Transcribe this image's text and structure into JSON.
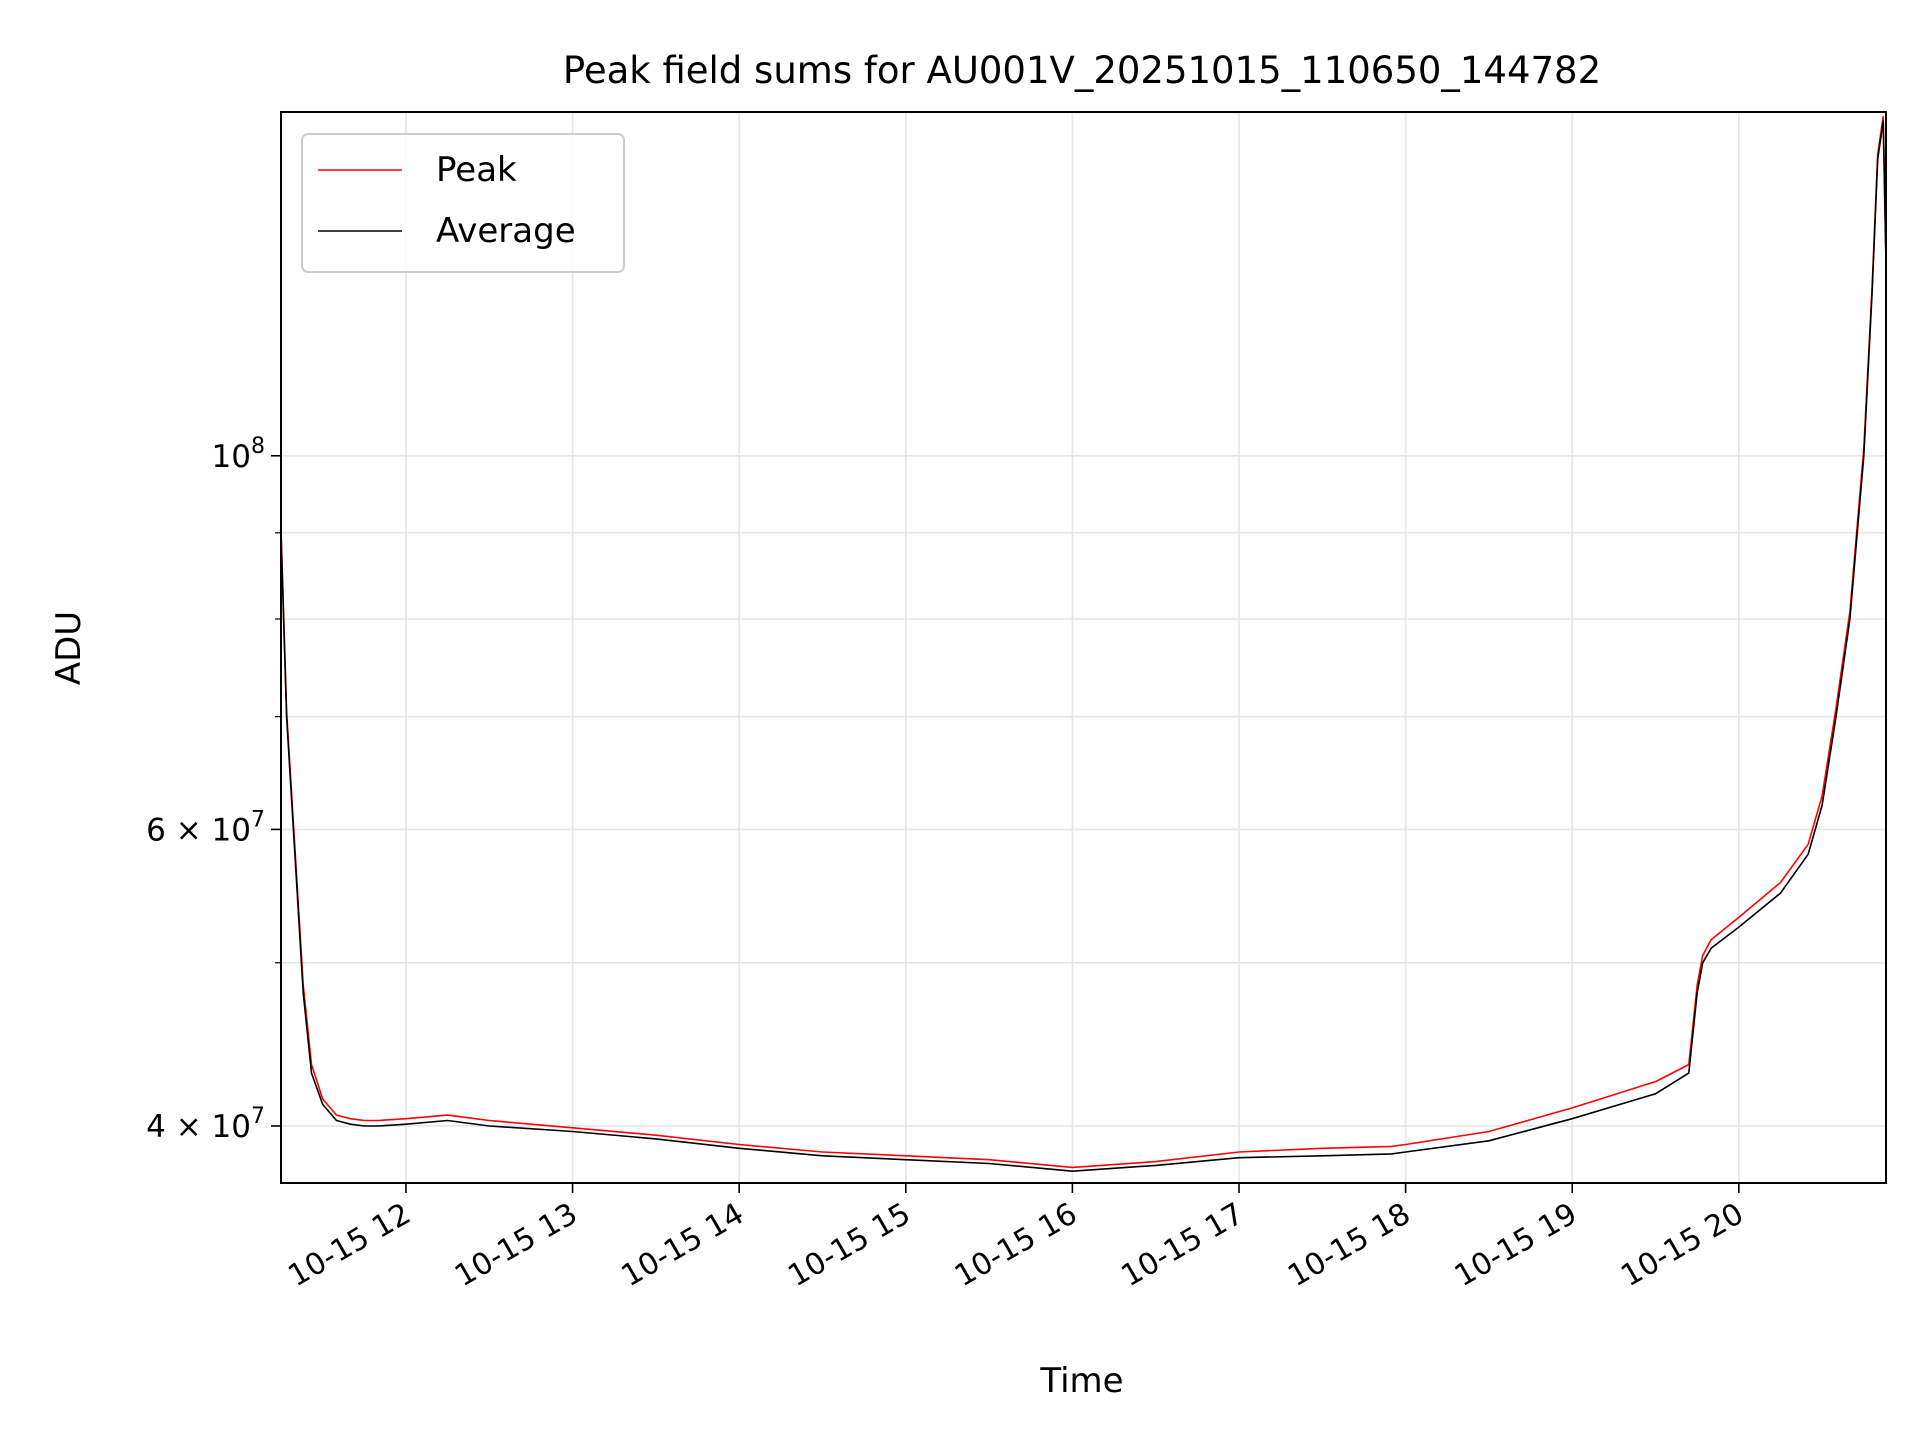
{
  "chart_data": {
    "type": "line",
    "title": "Peak field sums for AU001V_20251015_110650_144782",
    "xlabel": "Time",
    "ylabel": "ADU",
    "yscale": "log",
    "grid": true,
    "legend_position": "top-left",
    "xlim": [
      "2025-10-15 11:15",
      "2025-10-15 20:53"
    ],
    "ylim": [
      37000000,
      160000000
    ],
    "x_ticks": [
      {
        "label": "10-15 12",
        "value": "2025-10-15 12:00"
      },
      {
        "label": "10-15 13",
        "value": "2025-10-15 13:00"
      },
      {
        "label": "10-15 14",
        "value": "2025-10-15 14:00"
      },
      {
        "label": "10-15 15",
        "value": "2025-10-15 15:00"
      },
      {
        "label": "10-15 16",
        "value": "2025-10-15 16:00"
      },
      {
        "label": "10-15 17",
        "value": "2025-10-15 17:00"
      },
      {
        "label": "10-15 18",
        "value": "2025-10-15 18:00"
      },
      {
        "label": "10-15 19",
        "value": "2025-10-15 19:00"
      },
      {
        "label": "10-15 20",
        "value": "2025-10-15 20:00"
      }
    ],
    "y_ticks_major": [
      {
        "base": "4",
        "exp": "7",
        "value": 40000000
      },
      {
        "base": "6",
        "exp": "7",
        "value": 60000000
      },
      {
        "base": "",
        "exp": "8",
        "value": 100000000
      }
    ],
    "y_ticks_minor": [
      50000000,
      70000000,
      80000000,
      90000000
    ],
    "series": [
      {
        "name": "Average",
        "color": "#000000",
        "x": [
          "2025-10-15 11:15",
          "2025-10-15 11:17",
          "2025-10-15 11:20",
          "2025-10-15 11:23",
          "2025-10-15 11:26",
          "2025-10-15 11:30",
          "2025-10-15 11:35",
          "2025-10-15 11:40",
          "2025-10-15 11:45",
          "2025-10-15 11:50",
          "2025-10-15 12:00",
          "2025-10-15 12:15",
          "2025-10-15 12:30",
          "2025-10-15 13:00",
          "2025-10-15 13:30",
          "2025-10-15 14:00",
          "2025-10-15 14:30",
          "2025-10-15 15:00",
          "2025-10-15 15:30",
          "2025-10-15 16:00",
          "2025-10-15 16:30",
          "2025-10-15 17:00",
          "2025-10-15 17:30",
          "2025-10-15 17:55",
          "2025-10-15 18:00",
          "2025-10-15 18:30",
          "2025-10-15 19:00",
          "2025-10-15 19:30",
          "2025-10-15 19:42",
          "2025-10-15 19:45",
          "2025-10-15 19:47",
          "2025-10-15 19:50",
          "2025-10-15 20:00",
          "2025-10-15 20:15",
          "2025-10-15 20:25",
          "2025-10-15 20:30",
          "2025-10-15 20:35",
          "2025-10-15 20:40",
          "2025-10-15 20:45",
          "2025-10-15 20:48",
          "2025-10-15 20:50",
          "2025-10-15 20:52",
          "2025-10-15 20:53"
        ],
        "y": [
          90000000,
          70000000,
          58000000,
          48000000,
          43000000,
          41200000,
          40300000,
          40100000,
          40000000,
          40000000,
          40100000,
          40300000,
          40000000,
          39700000,
          39300000,
          38800000,
          38400000,
          38200000,
          38000000,
          37600000,
          37900000,
          38300000,
          38400000,
          38500000,
          38600000,
          39200000,
          40400000,
          41800000,
          43000000,
          48000000,
          50000000,
          51000000,
          52500000,
          55000000,
          58000000,
          62000000,
          70000000,
          80000000,
          100000000,
          125000000,
          150000000,
          158000000,
          130000000
        ]
      },
      {
        "name": "Peak",
        "color": "#ff0000",
        "x": [
          "2025-10-15 11:15",
          "2025-10-15 11:17",
          "2025-10-15 11:20",
          "2025-10-15 11:23",
          "2025-10-15 11:26",
          "2025-10-15 11:30",
          "2025-10-15 11:35",
          "2025-10-15 11:40",
          "2025-10-15 11:45",
          "2025-10-15 11:50",
          "2025-10-15 12:00",
          "2025-10-15 12:15",
          "2025-10-15 12:30",
          "2025-10-15 13:00",
          "2025-10-15 13:30",
          "2025-10-15 14:00",
          "2025-10-15 14:30",
          "2025-10-15 15:00",
          "2025-10-15 15:30",
          "2025-10-15 16:00",
          "2025-10-15 16:30",
          "2025-10-15 17:00",
          "2025-10-15 17:30",
          "2025-10-15 17:55",
          "2025-10-15 18:00",
          "2025-10-15 18:30",
          "2025-10-15 19:00",
          "2025-10-15 19:30",
          "2025-10-15 19:42",
          "2025-10-15 19:45",
          "2025-10-15 19:47",
          "2025-10-15 19:50",
          "2025-10-15 20:00",
          "2025-10-15 20:15",
          "2025-10-15 20:25",
          "2025-10-15 20:30",
          "2025-10-15 20:35",
          "2025-10-15 20:40",
          "2025-10-15 20:45",
          "2025-10-15 20:48",
          "2025-10-15 20:50",
          "2025-10-15 20:52",
          "2025-10-15 20:53"
        ],
        "y": [
          90500000,
          70500000,
          58500000,
          48500000,
          43500000,
          41500000,
          40600000,
          40400000,
          40300000,
          40300000,
          40400000,
          40600000,
          40300000,
          39900000,
          39500000,
          39000000,
          38600000,
          38400000,
          38200000,
          37800000,
          38100000,
          38600000,
          38800000,
          38900000,
          39000000,
          39700000,
          41000000,
          42500000,
          43500000,
          48500000,
          50500000,
          51600000,
          53200000,
          55800000,
          58800000,
          62800000,
          70800000,
          80800000,
          101000000,
          126000000,
          151000000,
          159000000,
          131000000
        ]
      }
    ]
  }
}
